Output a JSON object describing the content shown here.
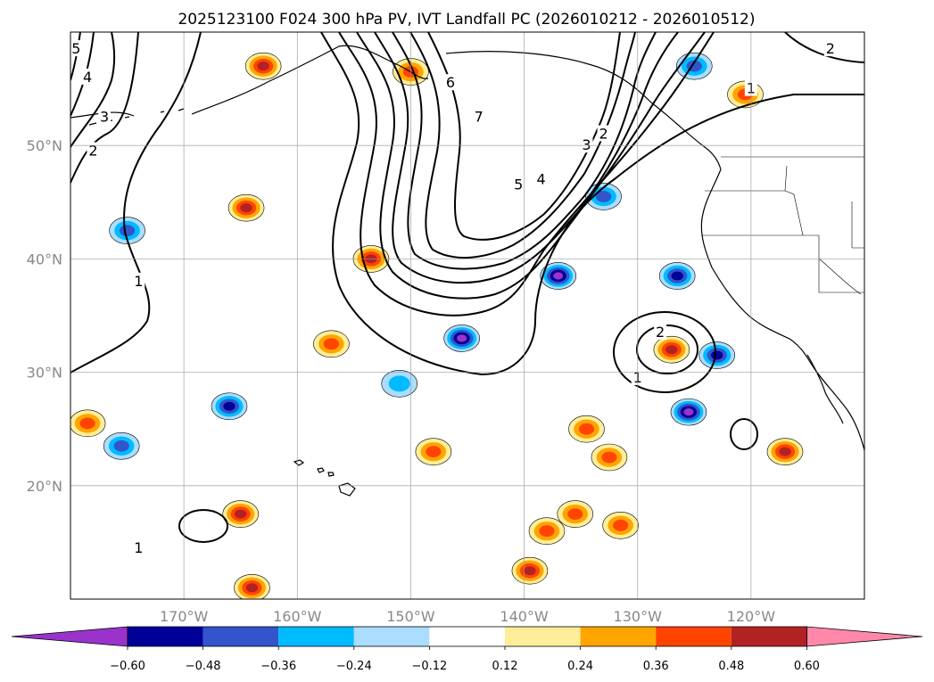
{
  "chart_data": {
    "type": "map-contour",
    "title": "2025123100 F024 300 hPa PV, IVT Landfall PC (2026010212 - 2026010512)",
    "x_ticks": [
      "170°W",
      "160°W",
      "150°W",
      "140°W",
      "130°W",
      "120°W"
    ],
    "y_ticks": [
      "50°N",
      "40°N",
      "30°N",
      "20°N"
    ],
    "lon_range": [
      -180,
      -110
    ],
    "lat_range": [
      10,
      60
    ],
    "pv_contour_labels": [
      "1",
      "2",
      "3",
      "4",
      "5",
      "6",
      "7"
    ],
    "contour_label_marks": [
      {
        "text": "1",
        "lon": -174,
        "lat": 38
      },
      {
        "text": "1",
        "lon": -174,
        "lat": 14.5
      },
      {
        "text": "1",
        "lon": -130,
        "lat": 29.5
      },
      {
        "text": "1",
        "lon": -120,
        "lat": 55
      },
      {
        "text": "2",
        "lon": -178,
        "lat": 49.5
      },
      {
        "text": "2",
        "lon": -128,
        "lat": 33.5
      },
      {
        "text": "2",
        "lon": -113,
        "lat": 58.5
      },
      {
        "text": "2",
        "lon": -133,
        "lat": 51
      },
      {
        "text": "3",
        "lon": -177,
        "lat": 52.5
      },
      {
        "text": "3",
        "lon": -134.5,
        "lat": 50
      },
      {
        "text": "4",
        "lon": -178.5,
        "lat": 56
      },
      {
        "text": "4",
        "lon": -138.5,
        "lat": 47
      },
      {
        "text": "5",
        "lon": -179.5,
        "lat": 58.5
      },
      {
        "text": "5",
        "lon": -140.5,
        "lat": 46.5
      },
      {
        "text": "6",
        "lon": -146.5,
        "lat": 55.5
      },
      {
        "text": "7",
        "lon": -144,
        "lat": 52.5
      }
    ],
    "colorbar": {
      "levels": [
        -0.6,
        -0.48,
        -0.36,
        -0.24,
        -0.12,
        0.12,
        0.24,
        0.36,
        0.48,
        0.6
      ],
      "tick_labels": [
        "−0.60",
        "−0.48",
        "−0.36",
        "−0.24",
        "−0.12",
        "0.12",
        "0.24",
        "0.36",
        "0.48",
        "0.60"
      ],
      "colors": [
        "#9933cc",
        "#000099",
        "#3355cc",
        "#00bbff",
        "#aaddff",
        "#ffffff",
        "#ffee99",
        "#ffa500",
        "#ff4400",
        "#b22222",
        "#ff88aa"
      ],
      "extend": "both"
    },
    "pc_features": [
      {
        "lon": -164.5,
        "lat": 44.5,
        "value": 0.48
      },
      {
        "lon": -165,
        "lat": 17.5,
        "value": 0.48
      },
      {
        "lon": -164,
        "lat": 11,
        "value": 0.48
      },
      {
        "lon": -178.5,
        "lat": 25.5,
        "value": 0.36
      },
      {
        "lon": -157,
        "lat": 32.5,
        "value": 0.36
      },
      {
        "lon": -153.5,
        "lat": 40,
        "value": 0.48
      },
      {
        "lon": -148,
        "lat": 23,
        "value": 0.36
      },
      {
        "lon": -139.5,
        "lat": 12.5,
        "value": 0.48
      },
      {
        "lon": -138,
        "lat": 16,
        "value": 0.36
      },
      {
        "lon": -135.5,
        "lat": 17.5,
        "value": 0.36
      },
      {
        "lon": -134.5,
        "lat": 25,
        "value": 0.36
      },
      {
        "lon": -132.5,
        "lat": 22.5,
        "value": 0.36
      },
      {
        "lon": -131.5,
        "lat": 16.5,
        "value": 0.36
      },
      {
        "lon": -127,
        "lat": 32,
        "value": 0.48
      },
      {
        "lon": -117,
        "lat": 23,
        "value": 0.48
      },
      {
        "lon": -163,
        "lat": 57,
        "value": 0.48
      },
      {
        "lon": -150,
        "lat": 56.5,
        "value": 0.36
      },
      {
        "lon": -120.5,
        "lat": 54.5,
        "value": 0.36
      },
      {
        "lon": -145.5,
        "lat": 33,
        "value": -0.6
      },
      {
        "lon": -137,
        "lat": 38.5,
        "value": -0.6
      },
      {
        "lon": -125.5,
        "lat": 26.5,
        "value": -0.6
      },
      {
        "lon": -126.5,
        "lat": 38.5,
        "value": -0.48
      },
      {
        "lon": -166,
        "lat": 27,
        "value": -0.48
      },
      {
        "lon": -123,
        "lat": 31.5,
        "value": -0.48
      },
      {
        "lon": -175,
        "lat": 42.5,
        "value": -0.36
      },
      {
        "lon": -133,
        "lat": 45.5,
        "value": -0.36
      },
      {
        "lon": -125,
        "lat": 57,
        "value": -0.36
      },
      {
        "lon": -175.5,
        "lat": 23.5,
        "value": -0.36
      },
      {
        "lon": -151,
        "lat": 29,
        "value": -0.24
      }
    ]
  }
}
